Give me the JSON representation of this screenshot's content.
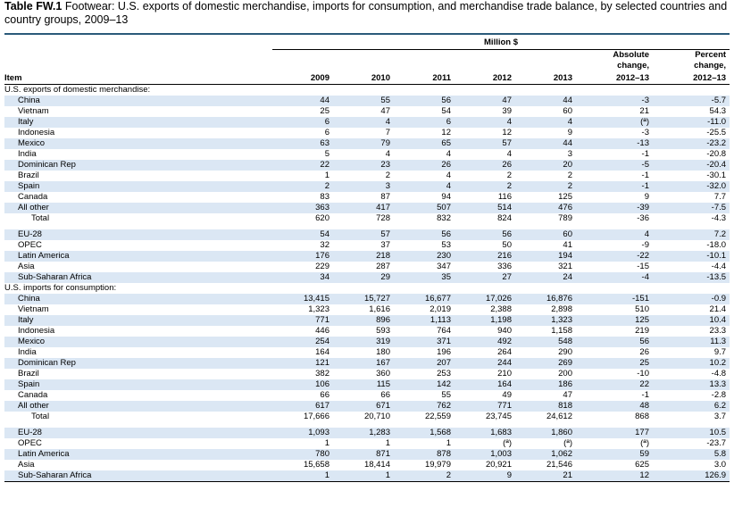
{
  "title": {
    "label": "Table FW.1",
    "text": "Footwear: U.S. exports of domestic merchandise, imports for consumption, and merchandise trade balance, by selected countries and country groups, 2009–13"
  },
  "header": {
    "unit": "Million $",
    "item": "Item",
    "years": [
      "2009",
      "2010",
      "2011",
      "2012",
      "2013"
    ],
    "abs1": "Absolute",
    "abs2": "change,",
    "abs3": "2012–13",
    "pct1": "Percent",
    "pct2": "change,",
    "pct3": "2012–13"
  },
  "sections": [
    {
      "heading": "U.S. exports of domestic merchandise:",
      "rows": [
        {
          "label": "China",
          "v": [
            "44",
            "55",
            "56",
            "47",
            "44",
            "-3",
            "-5.7"
          ]
        },
        {
          "label": "Vietnam",
          "v": [
            "25",
            "47",
            "54",
            "39",
            "60",
            "21",
            "54.3"
          ]
        },
        {
          "label": "Italy",
          "v": [
            "6",
            "4",
            "6",
            "4",
            "4",
            "(ª)",
            "-11.0"
          ]
        },
        {
          "label": "Indonesia",
          "v": [
            "6",
            "7",
            "12",
            "12",
            "9",
            "-3",
            "-25.5"
          ]
        },
        {
          "label": "Mexico",
          "v": [
            "63",
            "79",
            "65",
            "57",
            "44",
            "-13",
            "-23.2"
          ]
        },
        {
          "label": "India",
          "v": [
            "5",
            "4",
            "4",
            "4",
            "3",
            "-1",
            "-20.8"
          ]
        },
        {
          "label": "Dominican Rep",
          "v": [
            "22",
            "23",
            "26",
            "26",
            "20",
            "-5",
            "-20.4"
          ]
        },
        {
          "label": "Brazil",
          "v": [
            "1",
            "2",
            "4",
            "2",
            "2",
            "-1",
            "-30.1"
          ]
        },
        {
          "label": "Spain",
          "v": [
            "2",
            "3",
            "4",
            "2",
            "2",
            "-1",
            "-32.0"
          ]
        },
        {
          "label": "Canada",
          "v": [
            "83",
            "87",
            "94",
            "116",
            "125",
            "9",
            "7.7"
          ]
        },
        {
          "label": "All other",
          "v": [
            "363",
            "417",
            "507",
            "514",
            "476",
            "-39",
            "-7.5"
          ]
        },
        {
          "label": "Total",
          "v": [
            "620",
            "728",
            "832",
            "824",
            "789",
            "-36",
            "-4.3"
          ],
          "total": true
        }
      ],
      "groups": [
        {
          "label": "EU-28",
          "v": [
            "54",
            "57",
            "56",
            "56",
            "60",
            "4",
            "7.2"
          ]
        },
        {
          "label": "OPEC",
          "v": [
            "32",
            "37",
            "53",
            "50",
            "41",
            "-9",
            "-18.0"
          ]
        },
        {
          "label": "Latin America",
          "v": [
            "176",
            "218",
            "230",
            "216",
            "194",
            "-22",
            "-10.1"
          ]
        },
        {
          "label": "Asia",
          "v": [
            "229",
            "287",
            "347",
            "336",
            "321",
            "-15",
            "-4.4"
          ]
        },
        {
          "label": "Sub-Saharan Africa",
          "v": [
            "34",
            "29",
            "35",
            "27",
            "24",
            "-4",
            "-13.5"
          ]
        }
      ]
    },
    {
      "heading": "U.S. imports for consumption:",
      "rows": [
        {
          "label": "China",
          "v": [
            "13,415",
            "15,727",
            "16,677",
            "17,026",
            "16,876",
            "-151",
            "-0.9"
          ]
        },
        {
          "label": "Vietnam",
          "v": [
            "1,323",
            "1,616",
            "2,019",
            "2,388",
            "2,898",
            "510",
            "21.4"
          ]
        },
        {
          "label": "Italy",
          "v": [
            "771",
            "896",
            "1,113",
            "1,198",
            "1,323",
            "125",
            "10.4"
          ]
        },
        {
          "label": "Indonesia",
          "v": [
            "446",
            "593",
            "764",
            "940",
            "1,158",
            "219",
            "23.3"
          ]
        },
        {
          "label": "Mexico",
          "v": [
            "254",
            "319",
            "371",
            "492",
            "548",
            "56",
            "11.3"
          ]
        },
        {
          "label": "India",
          "v": [
            "164",
            "180",
            "196",
            "264",
            "290",
            "26",
            "9.7"
          ]
        },
        {
          "label": "Dominican Rep",
          "v": [
            "121",
            "167",
            "207",
            "244",
            "269",
            "25",
            "10.2"
          ]
        },
        {
          "label": "Brazil",
          "v": [
            "382",
            "360",
            "253",
            "210",
            "200",
            "-10",
            "-4.8"
          ]
        },
        {
          "label": "Spain",
          "v": [
            "106",
            "115",
            "142",
            "164",
            "186",
            "22",
            "13.3"
          ]
        },
        {
          "label": "Canada",
          "v": [
            "66",
            "66",
            "55",
            "49",
            "47",
            "-1",
            "-2.8"
          ]
        },
        {
          "label": "All other",
          "v": [
            "617",
            "671",
            "762",
            "771",
            "818",
            "48",
            "6.2"
          ]
        },
        {
          "label": "Total",
          "v": [
            "17,666",
            "20,710",
            "22,559",
            "23,745",
            "24,612",
            "868",
            "3.7"
          ],
          "total": true
        }
      ],
      "groups": [
        {
          "label": "EU-28",
          "v": [
            "1,093",
            "1,283",
            "1,568",
            "1,683",
            "1,860",
            "177",
            "10.5"
          ]
        },
        {
          "label": "OPEC",
          "v": [
            "1",
            "1",
            "1",
            "(ª)",
            "(ª)",
            "(ª)",
            "-23.7"
          ]
        },
        {
          "label": "Latin America",
          "v": [
            "780",
            "871",
            "878",
            "1,003",
            "1,062",
            "59",
            "5.8"
          ]
        },
        {
          "label": "Asia",
          "v": [
            "15,658",
            "18,414",
            "19,979",
            "20,921",
            "21,546",
            "625",
            "3.0"
          ]
        },
        {
          "label": "Sub-Saharan Africa",
          "v": [
            "1",
            "1",
            "2",
            "9",
            "21",
            "12",
            "126.9"
          ]
        }
      ]
    }
  ],
  "colors": {
    "rule": "#2a5a7a",
    "shade": "#dbe7f4"
  }
}
